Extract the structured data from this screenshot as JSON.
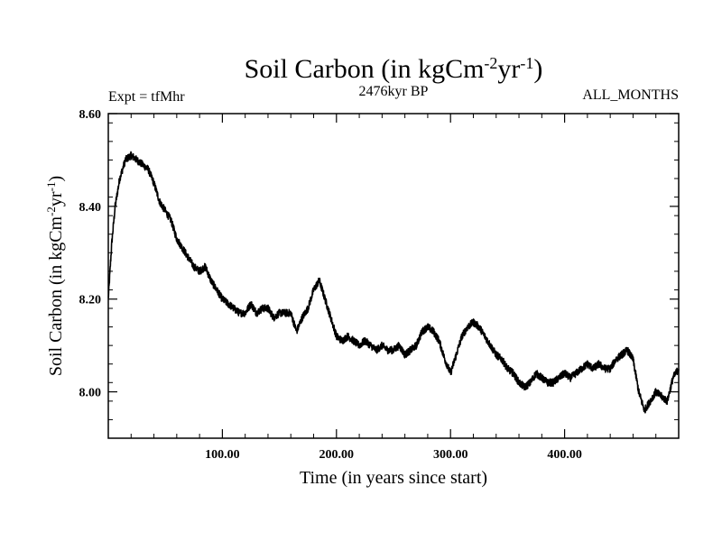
{
  "chart_data": {
    "type": "line",
    "title": "Soil Carbon (in kgCm",
    "title_exp1": "-2",
    "title_mid": "yr",
    "title_exp2": "-1",
    "title_end": ")",
    "left_note": "Expt = tfMhr",
    "center_note": "2476kyr BP",
    "right_note": "ALL_MONTHS",
    "xlabel": "Time (in years since start)",
    "ylabel": "Soil Carbon (in kgCm",
    "ylabel_exp1": "-2",
    "ylabel_mid": "yr",
    "ylabel_exp2": "-1",
    "ylabel_end": ")",
    "xlim": [
      0,
      500
    ],
    "ylim": [
      7.9,
      8.6
    ],
    "x_ticks": [
      100,
      200,
      300,
      400
    ],
    "x_tick_labels": [
      "100.00",
      "200.00",
      "300.00",
      "400.00"
    ],
    "y_ticks": [
      8.0,
      8.2,
      8.4,
      8.6
    ],
    "y_tick_labels": [
      "8.00",
      "8.20",
      "8.40",
      "8.60"
    ],
    "series": [
      {
        "name": "Soil Carbon",
        "noise_amplitude": 0.008,
        "x": [
          0,
          3,
          6,
          10,
          15,
          20,
          25,
          30,
          35,
          40,
          45,
          50,
          55,
          60,
          65,
          70,
          75,
          80,
          85,
          90,
          95,
          100,
          105,
          110,
          115,
          120,
          125,
          130,
          135,
          140,
          145,
          150,
          155,
          160,
          165,
          170,
          175,
          180,
          185,
          190,
          195,
          200,
          205,
          210,
          215,
          220,
          225,
          230,
          235,
          240,
          245,
          250,
          255,
          260,
          265,
          270,
          275,
          280,
          285,
          290,
          295,
          300,
          305,
          310,
          315,
          320,
          325,
          330,
          335,
          340,
          345,
          350,
          355,
          360,
          365,
          370,
          375,
          380,
          385,
          390,
          395,
          400,
          405,
          410,
          415,
          420,
          425,
          430,
          435,
          440,
          445,
          450,
          455,
          460,
          465,
          470,
          475,
          480,
          485,
          490,
          495,
          500
        ],
        "values": [
          8.2,
          8.32,
          8.4,
          8.46,
          8.5,
          8.51,
          8.5,
          8.49,
          8.48,
          8.45,
          8.41,
          8.39,
          8.37,
          8.33,
          8.31,
          8.29,
          8.27,
          8.26,
          8.27,
          8.24,
          8.22,
          8.2,
          8.19,
          8.18,
          8.17,
          8.17,
          8.19,
          8.17,
          8.18,
          8.18,
          8.16,
          8.17,
          8.17,
          8.17,
          8.13,
          8.16,
          8.18,
          8.22,
          8.24,
          8.2,
          8.16,
          8.12,
          8.11,
          8.12,
          8.11,
          8.1,
          8.11,
          8.1,
          8.09,
          8.1,
          8.09,
          8.09,
          8.1,
          8.08,
          8.09,
          8.1,
          8.13,
          8.14,
          8.13,
          8.11,
          8.07,
          8.04,
          8.08,
          8.12,
          8.14,
          8.15,
          8.14,
          8.12,
          8.1,
          8.08,
          8.07,
          8.05,
          8.04,
          8.02,
          8.01,
          8.02,
          8.04,
          8.03,
          8.02,
          8.02,
          8.03,
          8.04,
          8.03,
          8.04,
          8.05,
          8.06,
          8.05,
          8.06,
          8.05,
          8.05,
          8.07,
          8.08,
          8.09,
          8.07,
          8.0,
          7.96,
          7.98,
          8.0,
          7.99,
          7.98,
          8.03,
          8.05
        ]
      }
    ]
  }
}
